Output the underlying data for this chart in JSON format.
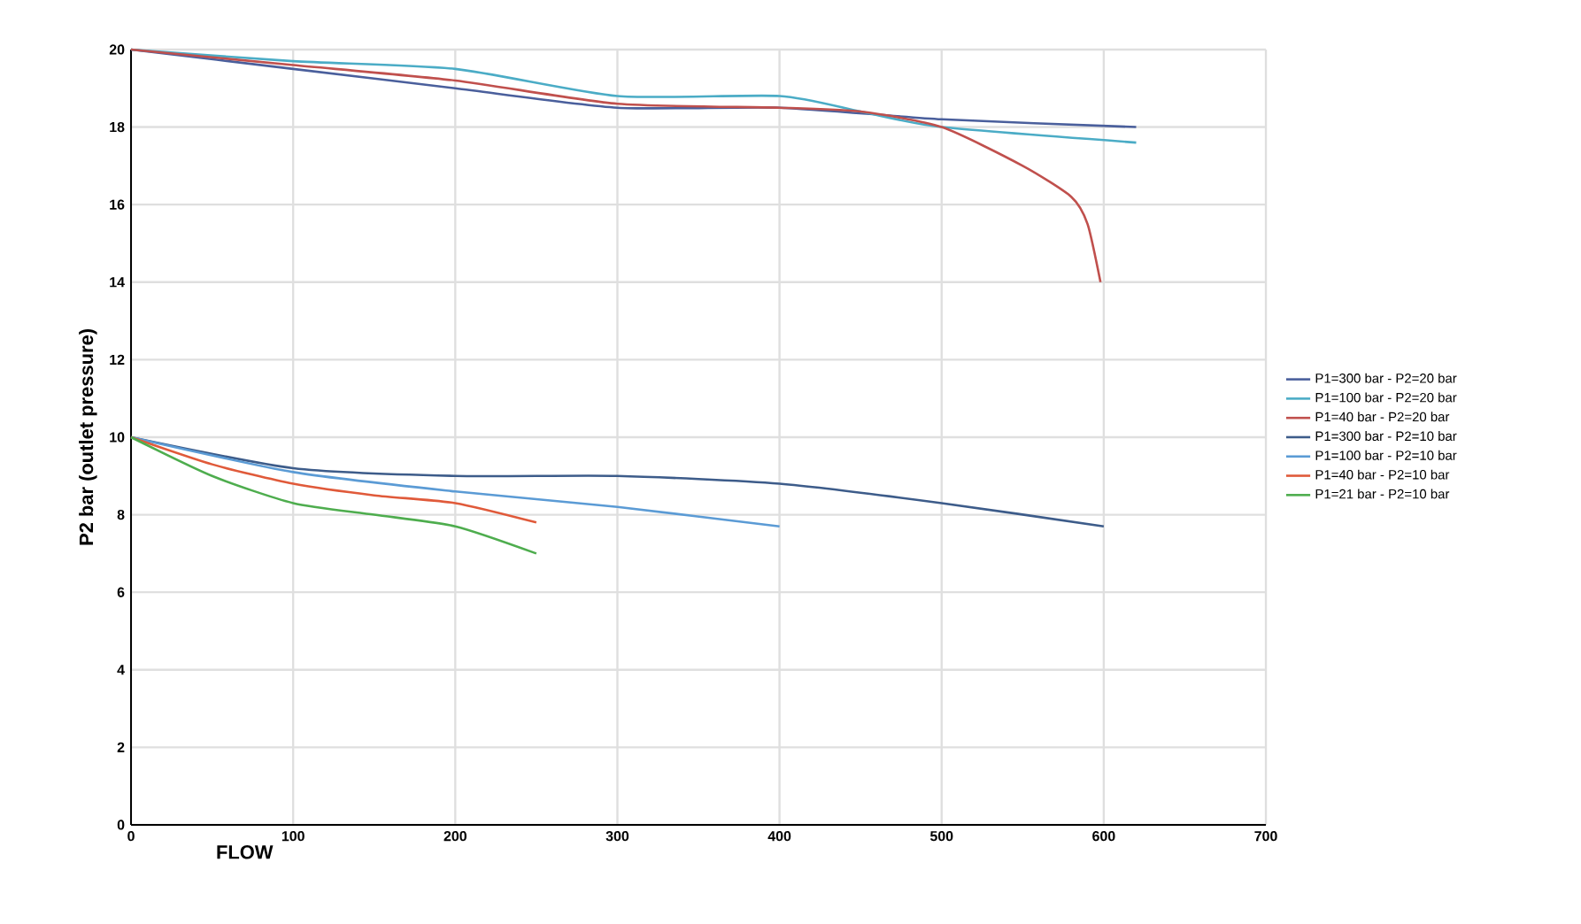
{
  "chart_data": {
    "type": "line",
    "xlabel": "FLOW",
    "ylabel": "P2 bar (outlet pressure)",
    "xlim": [
      0,
      700
    ],
    "ylim": [
      0,
      20
    ],
    "xticks": [
      0,
      100,
      200,
      300,
      400,
      500,
      600,
      700
    ],
    "yticks": [
      0,
      2,
      4,
      6,
      8,
      10,
      12,
      14,
      16,
      18,
      20
    ],
    "grid": true,
    "legend": "right",
    "series": [
      {
        "name": "P1=300 bar - P2=20 bar",
        "color": "#4a5f9c",
        "x": [
          0,
          100,
          200,
          300,
          400,
          500,
          620
        ],
        "values": [
          20,
          19.5,
          19.0,
          18.5,
          18.5,
          18.2,
          18.0
        ]
      },
      {
        "name": "P1=100 bar - P2=20 bar",
        "color": "#4bacc6",
        "x": [
          0,
          100,
          200,
          300,
          400,
          450,
          500,
          620
        ],
        "values": [
          20,
          19.7,
          19.5,
          18.8,
          18.8,
          18.4,
          18.0,
          17.6
        ]
      },
      {
        "name": "P1=40 bar - P2=20 bar",
        "color": "#c0504d",
        "x": [
          0,
          100,
          200,
          300,
          400,
          450,
          500,
          550,
          580,
          590,
          598
        ],
        "values": [
          20,
          19.6,
          19.2,
          18.6,
          18.5,
          18.4,
          18.0,
          17.0,
          16.2,
          15.5,
          14.0
        ]
      },
      {
        "name": "P1=300 bar - P2=10 bar",
        "color": "#3d5c8a",
        "x": [
          0,
          100,
          200,
          300,
          400,
          500,
          600
        ],
        "values": [
          10,
          9.2,
          9.0,
          9.0,
          8.8,
          8.3,
          7.7
        ]
      },
      {
        "name": "P1=100 bar - P2=10 bar",
        "color": "#5b9bd5",
        "x": [
          0,
          100,
          200,
          300,
          400
        ],
        "values": [
          10,
          9.1,
          8.6,
          8.2,
          7.7
        ]
      },
      {
        "name": "P1=40 bar - P2=10 bar",
        "color": "#e05a3a",
        "x": [
          0,
          50,
          100,
          150,
          200,
          250
        ],
        "values": [
          10,
          9.3,
          8.8,
          8.5,
          8.3,
          7.8
        ]
      },
      {
        "name": "P1=21 bar - P2=10 bar",
        "color": "#4ead4e",
        "x": [
          0,
          50,
          100,
          150,
          200,
          250
        ],
        "values": [
          10,
          9.0,
          8.3,
          8.0,
          7.7,
          7.0
        ]
      }
    ]
  }
}
